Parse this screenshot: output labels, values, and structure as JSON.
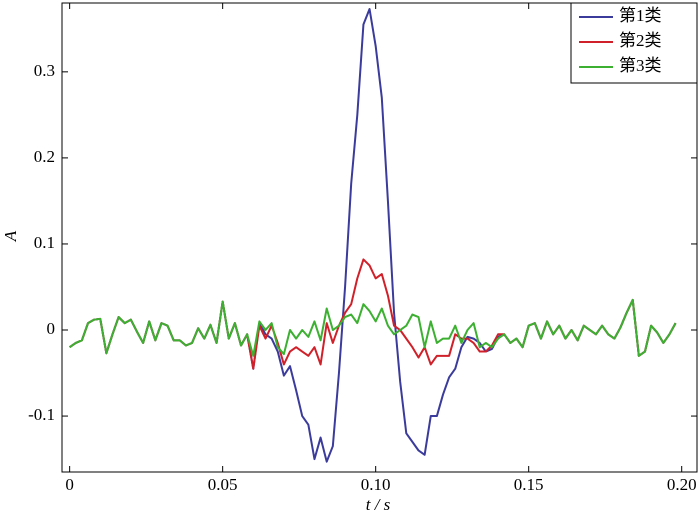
{
  "chart_data": {
    "type": "line",
    "x_label": "t / s",
    "y_label": "A",
    "x": [
      0,
      0.002,
      0.004,
      0.006,
      0.008,
      0.01,
      0.012,
      0.014,
      0.016,
      0.018,
      0.02,
      0.022,
      0.024,
      0.026,
      0.028,
      0.03,
      0.032,
      0.034,
      0.036,
      0.038,
      0.04,
      0.042,
      0.044,
      0.046,
      0.048,
      0.05,
      0.052,
      0.054,
      0.056,
      0.058,
      0.06,
      0.062,
      0.064,
      0.066,
      0.068,
      0.07,
      0.072,
      0.074,
      0.076,
      0.078,
      0.08,
      0.082,
      0.084,
      0.086,
      0.088,
      0.09,
      0.092,
      0.094,
      0.096,
      0.098,
      0.1,
      0.102,
      0.104,
      0.106,
      0.108,
      0.11,
      0.112,
      0.114,
      0.116,
      0.118,
      0.12,
      0.122,
      0.124,
      0.126,
      0.128,
      0.13,
      0.132,
      0.134,
      0.136,
      0.138,
      0.14,
      0.142,
      0.144,
      0.146,
      0.148,
      0.15,
      0.152,
      0.154,
      0.156,
      0.158,
      0.16,
      0.162,
      0.164,
      0.166,
      0.168,
      0.17,
      0.172,
      0.174,
      0.176,
      0.178,
      0.18,
      0.182,
      0.184,
      0.186,
      0.188,
      0.19,
      0.192,
      0.194,
      0.196,
      0.198
    ],
    "series": [
      {
        "name": "第1类",
        "color": "#3b3b9c",
        "values": [
          -0.02,
          -0.015,
          -0.012,
          0.008,
          0.012,
          0.013,
          -0.027,
          -0.005,
          0.015,
          0.008,
          0.012,
          -0.002,
          -0.015,
          0.01,
          -0.012,
          0.008,
          0.005,
          -0.012,
          -0.012,
          -0.018,
          -0.015,
          0.002,
          -0.01,
          0.006,
          -0.015,
          0.033,
          -0.01,
          0.008,
          -0.018,
          -0.005,
          -0.045,
          0.008,
          -0.005,
          -0.01,
          -0.025,
          -0.053,
          -0.042,
          -0.07,
          -0.1,
          -0.11,
          -0.15,
          -0.125,
          -0.153,
          -0.135,
          -0.05,
          0.05,
          0.17,
          0.25,
          0.355,
          0.373,
          0.33,
          0.27,
          0.15,
          0.02,
          -0.06,
          -0.12,
          -0.13,
          -0.14,
          -0.145,
          -0.1,
          -0.1,
          -0.075,
          -0.055,
          -0.045,
          -0.02,
          -0.008,
          -0.01,
          -0.015,
          -0.025,
          -0.022,
          -0.008,
          -0.005,
          -0.015,
          -0.01,
          -0.02,
          0.005,
          0.008,
          -0.01,
          0.01,
          -0.005,
          0.005,
          -0.01,
          0.0,
          -0.012,
          0.005,
          0.0,
          -0.005,
          0.005,
          -0.005,
          -0.01,
          0.003,
          0.02,
          0.035,
          -0.03,
          -0.025,
          0.005,
          -0.003,
          -0.015,
          -0.005,
          0.008
        ]
      },
      {
        "name": "第2类",
        "color": "#d0202a",
        "values": [
          -0.02,
          -0.015,
          -0.012,
          0.008,
          0.012,
          0.013,
          -0.027,
          -0.005,
          0.015,
          0.008,
          0.012,
          -0.002,
          -0.015,
          0.01,
          -0.012,
          0.008,
          0.005,
          -0.012,
          -0.012,
          -0.018,
          -0.015,
          0.002,
          -0.01,
          0.006,
          -0.015,
          0.033,
          -0.01,
          0.008,
          -0.018,
          -0.005,
          -0.045,
          0.005,
          -0.01,
          0.005,
          -0.015,
          -0.04,
          -0.025,
          -0.02,
          -0.025,
          -0.03,
          -0.02,
          -0.04,
          0.008,
          -0.015,
          0.005,
          0.02,
          0.03,
          0.06,
          0.082,
          0.075,
          0.06,
          0.065,
          0.04,
          0.005,
          0.0,
          -0.01,
          -0.02,
          -0.032,
          -0.02,
          -0.04,
          -0.03,
          -0.03,
          -0.03,
          -0.005,
          -0.01,
          -0.01,
          -0.015,
          -0.025,
          -0.025,
          -0.018,
          -0.005,
          -0.005,
          -0.015,
          -0.01,
          -0.02,
          0.005,
          0.008,
          -0.01,
          0.01,
          -0.005,
          0.005,
          -0.01,
          0.0,
          -0.012,
          0.005,
          0.0,
          -0.005,
          0.005,
          -0.005,
          -0.01,
          0.003,
          0.02,
          0.035,
          -0.03,
          -0.025,
          0.005,
          -0.003,
          -0.015,
          -0.005,
          0.008
        ]
      },
      {
        "name": "第3类",
        "color": "#3cb030",
        "values": [
          -0.02,
          -0.015,
          -0.012,
          0.008,
          0.012,
          0.013,
          -0.027,
          -0.005,
          0.015,
          0.008,
          0.012,
          -0.002,
          -0.015,
          0.01,
          -0.012,
          0.008,
          0.005,
          -0.012,
          -0.012,
          -0.018,
          -0.015,
          0.002,
          -0.01,
          0.006,
          -0.015,
          0.033,
          -0.01,
          0.008,
          -0.018,
          -0.005,
          -0.03,
          0.01,
          0.0,
          0.008,
          -0.02,
          -0.028,
          0.0,
          -0.01,
          0.0,
          -0.008,
          0.01,
          -0.012,
          0.025,
          0.0,
          0.005,
          0.015,
          0.018,
          0.008,
          0.03,
          0.022,
          0.01,
          0.025,
          0.005,
          -0.005,
          0.0,
          0.005,
          0.018,
          0.015,
          -0.02,
          0.01,
          -0.015,
          -0.01,
          -0.01,
          0.005,
          -0.015,
          0.0,
          0.008,
          -0.02,
          -0.015,
          -0.02,
          -0.01,
          -0.005,
          -0.015,
          -0.01,
          -0.02,
          0.005,
          0.008,
          -0.01,
          0.01,
          -0.005,
          0.005,
          -0.01,
          0.0,
          -0.012,
          0.005,
          0.0,
          -0.005,
          0.005,
          -0.005,
          -0.01,
          0.003,
          0.02,
          0.035,
          -0.03,
          -0.025,
          0.005,
          -0.003,
          -0.015,
          -0.005,
          0.008
        ]
      }
    ],
    "xlim": [
      -0.0025,
      0.205
    ],
    "xticks": [
      0,
      0.05,
      {
        "value": 0.1,
        "label": "0.10"
      },
      0.15,
      {
        "value": 0.2,
        "label": "0.20"
      }
    ],
    "ylim": [
      -0.165,
      0.38
    ],
    "yticks": [
      -0.1,
      0,
      0.1,
      0.2,
      0.3
    ],
    "legend": "upper right"
  }
}
